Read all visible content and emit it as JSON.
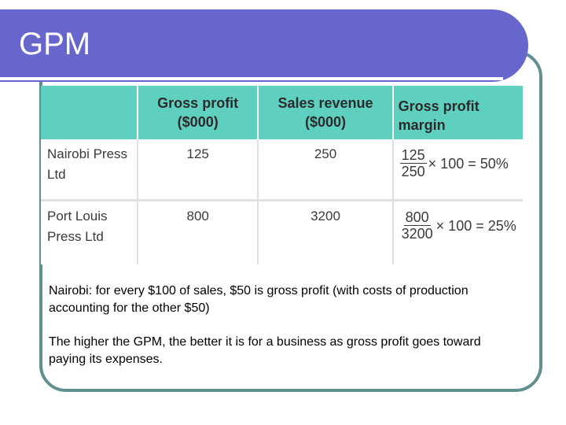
{
  "slide": {
    "title": "GPM",
    "colors": {
      "title_bar": "#6666cc",
      "table_header": "#5fcfc0",
      "frame": "#5f8f8f"
    }
  },
  "table": {
    "headers": [
      "",
      "Gross profit ($000)",
      "Sales revenue ($000)",
      "Gross profit margin"
    ],
    "rows": [
      {
        "company": "Nairobi Press Ltd",
        "gross_profit": "125",
        "sales_revenue": "250",
        "calc_numerator": "125",
        "calc_denominator": "250",
        "calc_rest": "× 100 = 50%"
      },
      {
        "company": "Port Louis Press Ltd",
        "gross_profit": "800",
        "sales_revenue": "3200",
        "calc_numerator": "800",
        "calc_denominator": "3200",
        "calc_rest": "× 100 = 25%"
      }
    ]
  },
  "notes": {
    "paragraph_1": "Nairobi: for every $100 of sales, $50 is gross profit (with costs of production accounting for the other $50)",
    "paragraph_2": "The higher the GPM, the better it is for a business as gross profit goes toward paying its expenses."
  }
}
